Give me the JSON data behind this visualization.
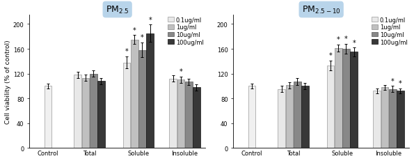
{
  "pm25": {
    "title": "PM$_{2.5}$",
    "categories": [
      "Control",
      "Total",
      "Soluble",
      "Insoluble"
    ],
    "bar_values": [
      [
        100,
        118,
        138,
        112
      ],
      [
        null,
        113,
        175,
        110
      ],
      [
        null,
        120,
        158,
        107
      ],
      [
        null,
        108,
        185,
        98
      ]
    ],
    "bar_errors": [
      [
        4,
        5,
        10,
        5
      ],
      [
        null,
        5,
        7,
        5
      ],
      [
        null,
        5,
        12,
        5
      ],
      [
        null,
        5,
        14,
        5
      ]
    ],
    "sig_stars": [
      [
        false,
        false,
        true,
        false
      ],
      [
        false,
        false,
        true,
        true
      ],
      [
        false,
        false,
        true,
        false
      ],
      [
        false,
        false,
        true,
        false
      ]
    ],
    "ylim": [
      0,
      215
    ],
    "yticks": [
      0,
      40,
      80,
      120,
      160,
      200
    ]
  },
  "pm2510": {
    "title": "PM$_{2.5-10}$",
    "categories": [
      "Control",
      "Total",
      "Soluble",
      "Insoluble"
    ],
    "bar_values": [
      [
        100,
        95,
        133,
        92
      ],
      [
        null,
        101,
        161,
        98
      ],
      [
        null,
        107,
        160,
        95
      ],
      [
        null,
        100,
        155,
        92
      ]
    ],
    "bar_errors": [
      [
        4,
        5,
        8,
        4
      ],
      [
        null,
        5,
        6,
        4
      ],
      [
        null,
        6,
        8,
        5
      ],
      [
        null,
        5,
        7,
        4
      ]
    ],
    "sig_stars": [
      [
        false,
        false,
        true,
        false
      ],
      [
        false,
        false,
        true,
        false
      ],
      [
        false,
        false,
        true,
        true
      ],
      [
        false,
        false,
        true,
        true
      ]
    ],
    "ylim": [
      0,
      215
    ],
    "yticks": [
      0,
      40,
      80,
      120,
      160,
      200
    ]
  },
  "bar_colors": [
    "#e8e8e8",
    "#c0c0c0",
    "#888888",
    "#383838"
  ],
  "bar_edge_colors": [
    "#999999",
    "#888888",
    "#555555",
    "#111111"
  ],
  "control_color": "#f0f0f0",
  "control_edge": "#999999",
  "legend_labels": [
    "0.1ug/ml",
    "1ug/ml",
    "10ug/ml",
    "100ug/ml"
  ],
  "ylabel": "Cell viability (% of control)",
  "title_box_color": "#b8d4ea",
  "title_fontsize": 9,
  "axis_fontsize": 6.5,
  "tick_fontsize": 6,
  "legend_fontsize": 6,
  "star_fontsize": 7
}
